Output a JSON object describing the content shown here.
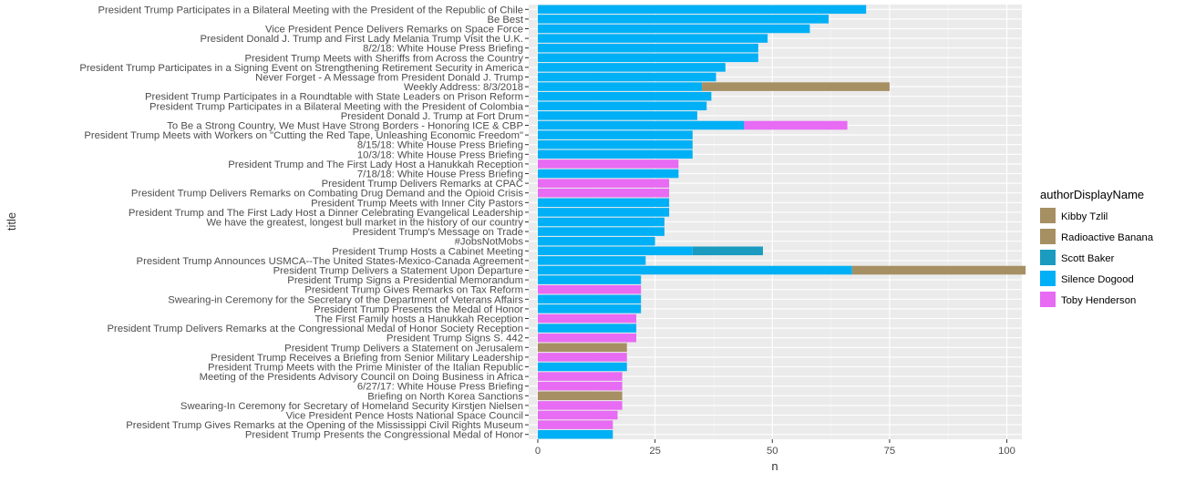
{
  "chart_data": {
    "type": "bar",
    "orientation": "horizontal",
    "stacked": true,
    "xlabel": "n",
    "ylabel": "title",
    "xlim": [
      0,
      110
    ],
    "x_ticks": [
      0,
      25,
      50,
      75,
      100
    ],
    "grid": true,
    "legend": {
      "title": "authorDisplayName",
      "placement": "right",
      "entries": [
        {
          "name": "Kibby Tzlil",
          "color": "#A68F63"
        },
        {
          "name": "Radioactive Banana",
          "color": "#A68F63"
        },
        {
          "name": "Scott Baker",
          "color": "#1C9BC0"
        },
        {
          "name": "Silence Dogood",
          "color": "#00B0F6"
        },
        {
          "name": "Toby Henderson",
          "color": "#E76BF3"
        }
      ]
    },
    "categories": [
      "President Trump Participates in a Bilateral Meeting with the President of the Republic of Chile",
      "Be Best",
      "Vice President Pence Delivers Remarks on Space Force",
      "President Donald J. Trump and First Lady Melania Trump Visit the U.K.",
      "8/2/18: White House Press Briefing",
      "President Trump Meets with Sheriffs from Across the Country",
      "President Trump Participates in a Signing Event on Strengthening Retirement Security in America",
      "Never Forget - A Message from President Donald J. Trump",
      "Weekly Address: 8/3/2018",
      "President Trump Participates in a Roundtable with State Leaders on Prison Reform",
      "President Trump Participates in a Bilateral Meeting with the President of Colombia",
      "President Donald J. Trump at Fort Drum",
      "To Be a Strong Country, We Must Have Strong Borders - Honoring ICE & CBP",
      "President Trump Meets with Workers on \"Cutting the Red Tape, Unleashing Economic Freedom\"",
      "8/15/18: White House Press Briefing",
      "10/3/18: White House Press Briefing",
      "President Trump and The First Lady Host a Hanukkah Reception",
      "7/18/18: White House Press Briefing",
      "President Trump Delivers Remarks at CPAC",
      "President Trump Delivers Remarks on Combating Drug Demand and the Opioid Crisis",
      "President Trump Meets with Inner City Pastors",
      "President Trump and The First Lady Host a Dinner Celebrating Evangelical Leadership",
      "We have the greatest, longest bull market in the history of our country",
      "President Trump's Message on Trade",
      "#JobsNotMobs",
      "President Trump Hosts a Cabinet Meeting",
      "President Trump Announces USMCA--The United States-Mexico-Canada Agreement",
      "President Trump Delivers a Statement Upon Departure",
      "President Trump Signs a Presidential Memorandum",
      "President Trump Gives Remarks on Tax Reform",
      "Swearing-in Ceremony for the Secretary of the Department of Veterans Affairs",
      "President Trump Presents the Medal of Honor",
      "The First Family hosts a Hanukkah Reception",
      "President Trump Delivers Remarks at the Congressional Medal of Honor Society Reception",
      "President Trump Signs S. 442",
      "President Trump Delivers a Statement on Jerusalem",
      "President Trump Receives a Briefing from Senior Military Leadership",
      "President Trump Meets with the Prime Minister of the Italian Republic",
      "Meeting of the Presidents Advisory Council on Doing Business in Africa",
      "6/27/17: White House Press Briefing",
      "Briefing on North Korea Sanctions",
      "Swearing-In Ceremony for Secretary of Homeland Security Kirstjen Nielsen",
      "Vice President Pence Hosts National Space Council",
      "President Trump Gives Remarks at the Opening of the Mississippi Civil Rights Museum",
      "President Trump Presents the Congressional Medal of Honor"
    ],
    "series": [
      {
        "name": "Kibby Tzlil",
        "color": "#A68F63",
        "values": [
          0,
          0,
          0,
          0,
          0,
          0,
          0,
          0,
          0,
          0,
          0,
          0,
          0,
          0,
          0,
          0,
          0,
          0,
          0,
          0,
          0,
          0,
          0,
          0,
          0,
          0,
          0,
          0,
          0,
          0,
          0,
          0,
          0,
          0,
          0,
          19,
          0,
          0,
          0,
          0,
          18,
          0,
          0,
          0,
          0
        ]
      },
      {
        "name": "Radioactive Banana",
        "color": "#A68F63",
        "values": [
          0,
          0,
          0,
          0,
          0,
          0,
          0,
          0,
          40,
          0,
          0,
          0,
          0,
          0,
          0,
          0,
          0,
          0,
          0,
          0,
          0,
          0,
          0,
          0,
          0,
          0,
          0,
          37,
          0,
          0,
          0,
          0,
          0,
          0,
          0,
          0,
          0,
          0,
          0,
          0,
          0,
          0,
          0,
          0,
          0
        ]
      },
      {
        "name": "Scott Baker",
        "color": "#1C9BC0",
        "values": [
          0,
          0,
          0,
          0,
          0,
          0,
          0,
          0,
          0,
          0,
          0,
          0,
          0,
          0,
          0,
          0,
          0,
          0,
          0,
          0,
          0,
          0,
          0,
          0,
          0,
          15,
          0,
          0,
          0,
          0,
          0,
          0,
          0,
          0,
          0,
          0,
          0,
          0,
          0,
          0,
          0,
          0,
          0,
          0,
          0
        ]
      },
      {
        "name": "Silence Dogood",
        "color": "#00B0F6",
        "values": [
          70,
          62,
          58,
          49,
          47,
          47,
          40,
          38,
          35,
          37,
          36,
          34,
          44,
          33,
          33,
          33,
          0,
          30,
          0,
          0,
          28,
          28,
          27,
          27,
          25,
          33,
          23,
          67,
          22,
          0,
          22,
          22,
          0,
          21,
          0,
          0,
          0,
          19,
          0,
          0,
          0,
          0,
          0,
          0,
          16
        ]
      },
      {
        "name": "Toby Henderson",
        "color": "#E76BF3",
        "values": [
          0,
          0,
          0,
          0,
          0,
          0,
          0,
          0,
          0,
          0,
          0,
          0,
          22,
          0,
          0,
          0,
          30,
          0,
          28,
          28,
          0,
          0,
          0,
          0,
          0,
          0,
          0,
          0,
          0,
          22,
          0,
          0,
          21,
          0,
          21,
          0,
          19,
          0,
          18,
          18,
          0,
          18,
          17,
          16,
          0
        ]
      }
    ]
  }
}
